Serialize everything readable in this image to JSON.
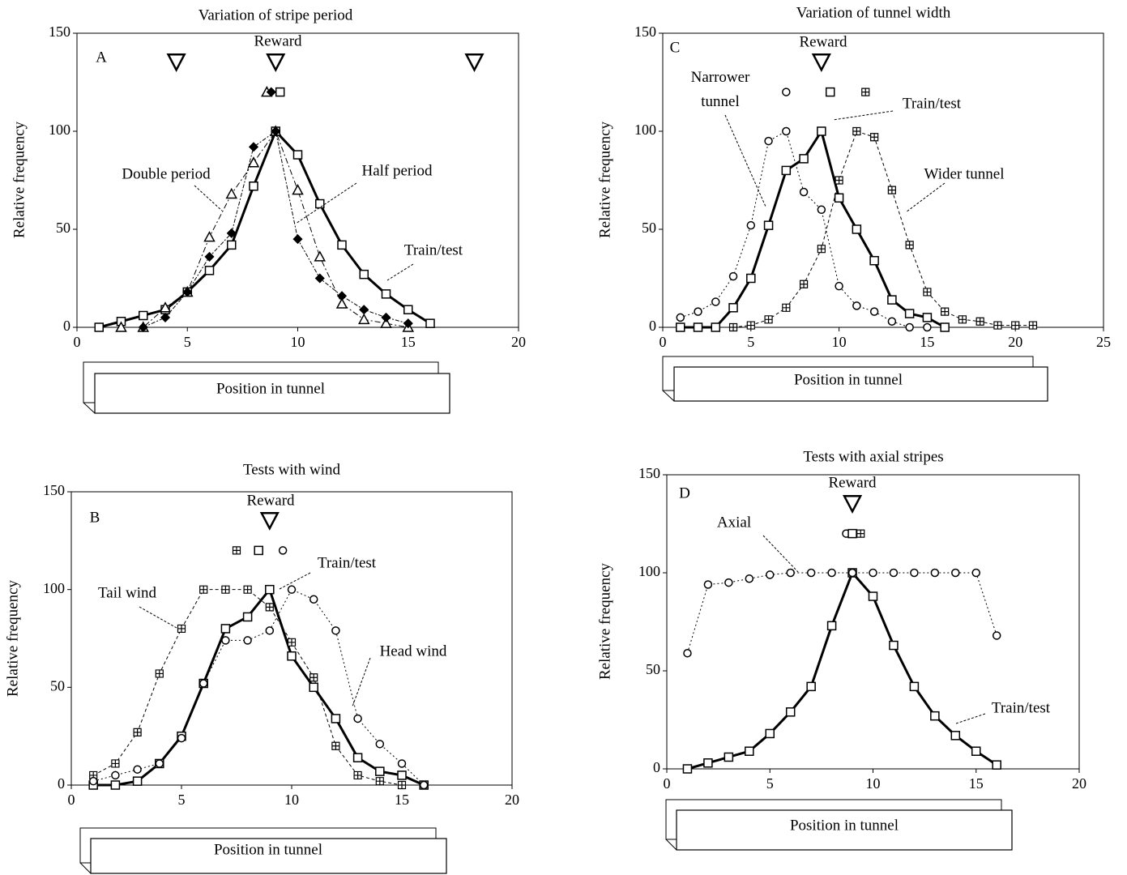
{
  "chart_data": [
    {
      "type": "line",
      "title": "Variation of stripe period",
      "panel_label": "A",
      "xlabel": "Position in tunnel",
      "ylabel": "Relative frequency",
      "xlim": [
        0,
        20
      ],
      "xticks": [
        0,
        5,
        10,
        15,
        20
      ],
      "ylim": [
        0,
        150
      ],
      "yticks": [
        0,
        50,
        100,
        150
      ],
      "color": "#000000",
      "series": [
        {
          "name": "Train/test",
          "marker": "square",
          "dash": "none",
          "width": 3,
          "x": [
            1,
            2,
            3,
            4,
            5,
            6,
            7,
            8,
            9,
            10,
            11,
            12,
            13,
            14,
            15,
            16
          ],
          "values": [
            0,
            3,
            6,
            9,
            18,
            29,
            42,
            72,
            100,
            88,
            63,
            42,
            27,
            17,
            9,
            2
          ]
        },
        {
          "name": "Double period",
          "marker": "triangle",
          "dash": "7,3,2,3",
          "width": 1,
          "x": [
            2,
            3,
            4,
            5,
            6,
            7,
            8,
            9,
            10,
            11,
            12,
            13,
            14,
            15
          ],
          "values": [
            0,
            0,
            10,
            18,
            46,
            68,
            84,
            100,
            70,
            36,
            12,
            4,
            2,
            0
          ]
        },
        {
          "name": "Half period",
          "marker": "diamond",
          "dash": "5,2,2,2",
          "width": 1,
          "x": [
            3,
            4,
            5,
            6,
            7,
            8,
            9,
            10,
            11,
            12,
            13,
            14,
            15
          ],
          "values": [
            0,
            5,
            18,
            36,
            48,
            92,
            100,
            45,
            25,
            16,
            9,
            5,
            2
          ]
        },
        {
          "name": "Reward",
          "marker": "reward",
          "dash": "none",
          "width": 0,
          "x": [
            4.5,
            9,
            18
          ],
          "values": [
            135,
            135,
            135
          ]
        }
      ],
      "markers": {
        "x": [
          8.6,
          8.8,
          9.2
        ],
        "values": [
          120,
          120,
          120
        ],
        "shapes": [
          "triangle",
          "diamond",
          "square"
        ]
      }
    },
    {
      "type": "line",
      "title": "Variation of tunnel width",
      "panel_label": "C",
      "xlabel": "Position in tunnel",
      "ylabel": "Relative frequency",
      "xlim": [
        0,
        25
      ],
      "xticks": [
        0,
        5,
        10,
        15,
        20,
        25
      ],
      "ylim": [
        0,
        150
      ],
      "yticks": [
        0,
        50,
        100,
        150
      ],
      "color": "#000000",
      "series": [
        {
          "name": "Train/test",
          "marker": "square",
          "dash": "none",
          "width": 3,
          "x": [
            1,
            2,
            3,
            4,
            5,
            6,
            7,
            8,
            9,
            10,
            11,
            12,
            13,
            14,
            15,
            16
          ],
          "values": [
            0,
            0,
            0,
            10,
            25,
            52,
            80,
            86,
            100,
            66,
            50,
            34,
            14,
            7,
            5,
            0
          ]
        },
        {
          "name": "Narrower tunnel",
          "marker": "circle",
          "dash": "2,3",
          "width": 1,
          "x": [
            1,
            2,
            3,
            4,
            5,
            6,
            7,
            8,
            9,
            10,
            11,
            12,
            13,
            14,
            15
          ],
          "values": [
            5,
            8,
            13,
            26,
            52,
            95,
            100,
            69,
            60,
            21,
            11,
            8,
            3,
            0,
            0
          ]
        },
        {
          "name": "Wider tunnel",
          "marker": "boxplus",
          "dash": "4,3",
          "width": 1,
          "x": [
            4,
            5,
            6,
            7,
            8,
            9,
            10,
            11,
            12,
            13,
            14,
            15,
            16,
            17,
            18,
            19,
            20,
            21
          ],
          "values": [
            0,
            1,
            4,
            10,
            22,
            40,
            75,
            100,
            97,
            70,
            42,
            18,
            8,
            4,
            3,
            1,
            1,
            1
          ]
        },
        {
          "name": "Reward",
          "marker": "reward",
          "dash": "none",
          "width": 0,
          "x": [
            9
          ],
          "values": [
            135
          ]
        }
      ],
      "markers": {
        "x": [
          7,
          9.5,
          11.5
        ],
        "values": [
          120,
          120,
          120
        ],
        "shapes": [
          "circle",
          "square",
          "boxplus"
        ]
      }
    },
    {
      "type": "line",
      "title": "Tests with wind",
      "panel_label": "B",
      "xlabel": "Position in tunnel",
      "ylabel": "Relative frequency",
      "xlim": [
        0,
        20
      ],
      "xticks": [
        0,
        5,
        10,
        15,
        20
      ],
      "ylim": [
        0,
        150
      ],
      "yticks": [
        0,
        50,
        100,
        150
      ],
      "color": "#000000",
      "series": [
        {
          "name": "Train/test",
          "marker": "square",
          "dash": "none",
          "width": 3,
          "x": [
            1,
            2,
            3,
            4,
            5,
            6,
            7,
            8,
            9,
            10,
            11,
            12,
            13,
            14,
            15,
            16
          ],
          "values": [
            0,
            0,
            2,
            11,
            25,
            52,
            80,
            86,
            100,
            66,
            50,
            34,
            14,
            7,
            5,
            0
          ]
        },
        {
          "name": "Tail wind",
          "marker": "boxplus",
          "dash": "4,3",
          "width": 1,
          "x": [
            1,
            2,
            3,
            4,
            5,
            6,
            7,
            8,
            9,
            10,
            11,
            12,
            13,
            14,
            15
          ],
          "values": [
            5,
            11,
            27,
            57,
            80,
            100,
            100,
            100,
            91,
            73,
            55,
            20,
            5,
            2,
            0
          ]
        },
        {
          "name": "Head wind",
          "marker": "circle",
          "dash": "2,3",
          "width": 1,
          "x": [
            1,
            2,
            3,
            4,
            5,
            6,
            7,
            8,
            9,
            10,
            11,
            12,
            13,
            14,
            15,
            16
          ],
          "values": [
            2,
            5,
            8,
            11,
            24,
            52,
            74,
            74,
            79,
            100,
            95,
            79,
            34,
            21,
            11,
            0
          ]
        },
        {
          "name": "Reward",
          "marker": "reward",
          "dash": "none",
          "width": 0,
          "x": [
            9
          ],
          "values": [
            135
          ]
        }
      ],
      "markers": {
        "x": [
          7.5,
          8.5,
          9.6
        ],
        "values": [
          120,
          120,
          120
        ],
        "shapes": [
          "boxplus",
          "square",
          "circle"
        ]
      }
    },
    {
      "type": "line",
      "title": "Tests with axial stripes",
      "panel_label": "D",
      "xlabel": "Position in tunnel",
      "ylabel": "Relative frequency",
      "xlim": [
        0,
        20
      ],
      "xticks": [
        0,
        5,
        10,
        15,
        20
      ],
      "ylim": [
        0,
        150
      ],
      "yticks": [
        0,
        50,
        100,
        150
      ],
      "color": "#000000",
      "series": [
        {
          "name": "Train/test",
          "marker": "square",
          "dash": "none",
          "width": 3,
          "x": [
            1,
            2,
            3,
            4,
            5,
            6,
            7,
            8,
            9,
            10,
            11,
            12,
            13,
            14,
            15,
            16
          ],
          "values": [
            0,
            3,
            6,
            9,
            18,
            29,
            42,
            73,
            100,
            88,
            63,
            42,
            27,
            17,
            9,
            2
          ]
        },
        {
          "name": "Axial",
          "marker": "circle",
          "dash": "2,3",
          "width": 1,
          "x": [
            1,
            2,
            3,
            4,
            5,
            6,
            7,
            8,
            9,
            10,
            11,
            12,
            13,
            14,
            15,
            16
          ],
          "values": [
            59,
            94,
            95,
            97,
            99,
            100,
            100,
            100,
            100,
            100,
            100,
            100,
            100,
            100,
            100,
            68
          ]
        },
        {
          "name": "Reward",
          "marker": "reward",
          "dash": "none",
          "width": 0,
          "x": [
            9
          ],
          "values": [
            135
          ]
        }
      ],
      "markers": {
        "x": [
          8.7,
          9,
          9.4
        ],
        "values": [
          120,
          120,
          120
        ],
        "shapes": [
          "circle",
          "square",
          "boxplus"
        ]
      }
    }
  ]
}
